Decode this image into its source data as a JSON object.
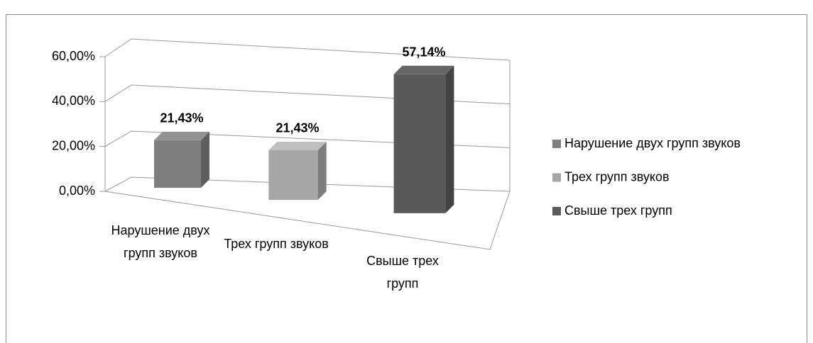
{
  "chart_data": {
    "type": "bar3d",
    "categories": [
      "Нарушение двух групп звуков",
      "Трех групп звуков",
      "Свыше трех групп"
    ],
    "values": [
      21.43,
      21.43,
      57.14
    ],
    "value_labels": [
      "21,43%",
      "21,43%",
      "57,14%"
    ],
    "colors": [
      "#7f7f7f",
      "#a6a6a6",
      "#595959"
    ],
    "ylim": [
      0,
      60
    ],
    "yticks": [
      {
        "value": 0,
        "label": "0,00%"
      },
      {
        "value": 20,
        "label": "20,00%"
      },
      {
        "value": 40,
        "label": "40,00%"
      },
      {
        "value": 60,
        "label": "60,00%"
      }
    ],
    "grid": true,
    "legend": "right"
  }
}
